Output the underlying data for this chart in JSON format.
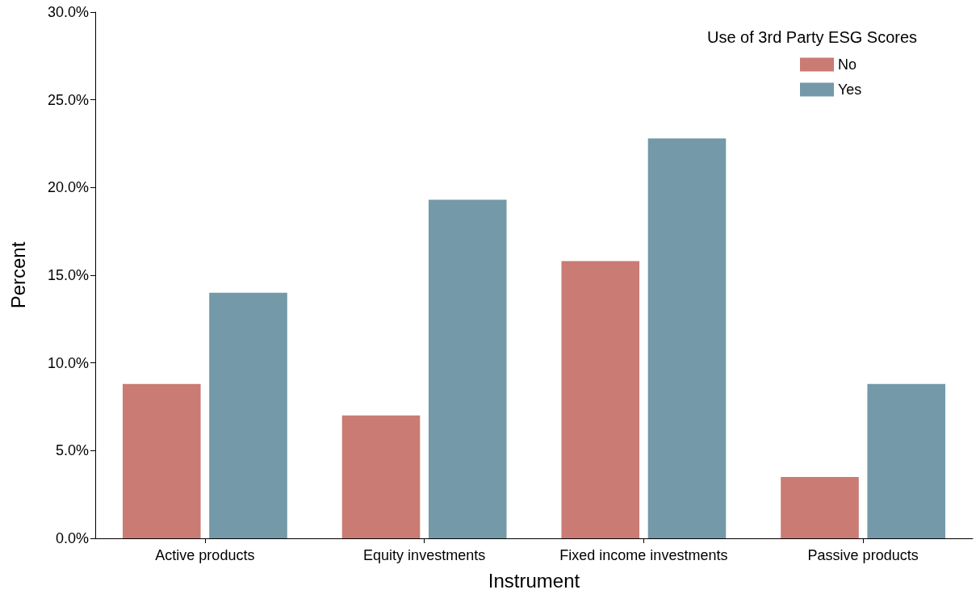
{
  "chart_data": {
    "type": "bar",
    "xlabel": "Instrument",
    "ylabel": "Percent",
    "legend_title": "Use of 3rd Party ESG Scores",
    "categories": [
      "Active products",
      "Equity investments",
      "Fixed income investments",
      "Passive products"
    ],
    "series": [
      {
        "name": "No",
        "color": "#c97b74",
        "values": [
          8.8,
          7.0,
          15.8,
          3.5
        ]
      },
      {
        "name": "Yes",
        "color": "#7499a8",
        "values": [
          14.0,
          19.3,
          22.8,
          8.8
        ]
      }
    ],
    "ylim": [
      0,
      30
    ],
    "yticks": [
      {
        "value": 0,
        "label": "0.0%"
      },
      {
        "value": 5,
        "label": "5.0%"
      },
      {
        "value": 10,
        "label": "10.0%"
      },
      {
        "value": 15,
        "label": "15.0%"
      },
      {
        "value": 20,
        "label": "20.0%"
      },
      {
        "value": 25,
        "label": "25.0%"
      },
      {
        "value": 30,
        "label": "30.0%"
      }
    ],
    "grid": false,
    "legend": "top right"
  }
}
